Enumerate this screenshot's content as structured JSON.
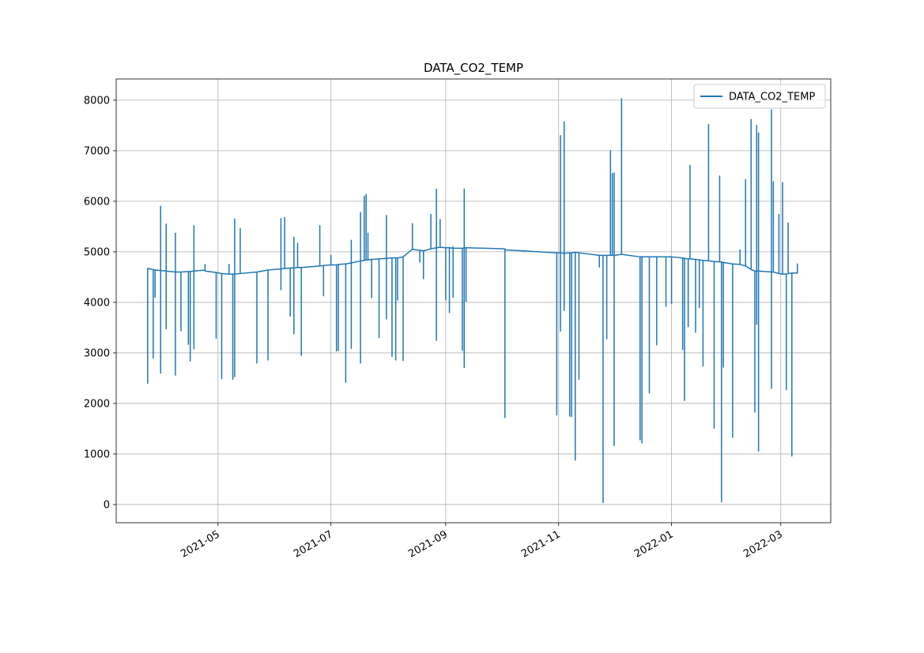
{
  "chart_data": {
    "type": "line",
    "title": "DATA_CO2_TEMP",
    "x": [
      "2021-03-24",
      "2021-03-24",
      "2021-03-24",
      "2021-03-27",
      "2021-03-27",
      "2021-03-27",
      "2021-03-28",
      "2021-03-28",
      "2021-03-28",
      "2021-03-31",
      "2021-03-31",
      "2021-03-31",
      "2021-03-31",
      "2021-04-03",
      "2021-04-03",
      "2021-04-03",
      "2021-04-03",
      "2021-04-08",
      "2021-04-08",
      "2021-04-08",
      "2021-04-08",
      "2021-04-11",
      "2021-04-11",
      "2021-04-11",
      "2021-04-15",
      "2021-04-15",
      "2021-04-15",
      "2021-04-16",
      "2021-04-16",
      "2021-04-16",
      "2021-04-18",
      "2021-04-18",
      "2021-04-18",
      "2021-04-18",
      "2021-04-24",
      "2021-04-24",
      "2021-04-24",
      "2021-04-30",
      "2021-04-30",
      "2021-04-30",
      "2021-05-03",
      "2021-05-03",
      "2021-05-03",
      "2021-05-07",
      "2021-05-07",
      "2021-05-07",
      "2021-05-09",
      "2021-05-09",
      "2021-05-09",
      "2021-05-10",
      "2021-05-10",
      "2021-05-10",
      "2021-05-10",
      "2021-05-13",
      "2021-05-13",
      "2021-05-13",
      "2021-05-22",
      "2021-05-22",
      "2021-05-22",
      "2021-05-28",
      "2021-05-28",
      "2021-05-28",
      "2021-06-04",
      "2021-06-04",
      "2021-06-04",
      "2021-06-04",
      "2021-06-06",
      "2021-06-06",
      "2021-06-06",
      "2021-06-09",
      "2021-06-09",
      "2021-06-09",
      "2021-06-11",
      "2021-06-11",
      "2021-06-11",
      "2021-06-11",
      "2021-06-13",
      "2021-06-13",
      "2021-06-13",
      "2021-06-15",
      "2021-06-15",
      "2021-06-15",
      "2021-06-25",
      "2021-06-25",
      "2021-06-25",
      "2021-06-27",
      "2021-06-27",
      "2021-06-27",
      "2021-07-01",
      "2021-07-01",
      "2021-07-01",
      "2021-07-04",
      "2021-07-04",
      "2021-07-04",
      "2021-07-05",
      "2021-07-05",
      "2021-07-05",
      "2021-07-09",
      "2021-07-09",
      "2021-07-09",
      "2021-07-12",
      "2021-07-12",
      "2021-07-12",
      "2021-07-12",
      "2021-07-17",
      "2021-07-17",
      "2021-07-17",
      "2021-07-17",
      "2021-07-19",
      "2021-07-19",
      "2021-07-19",
      "2021-07-20",
      "2021-07-20",
      "2021-07-20",
      "2021-07-21",
      "2021-07-21",
      "2021-07-21",
      "2021-07-23",
      "2021-07-23",
      "2021-07-23",
      "2021-07-27",
      "2021-07-27",
      "2021-07-27",
      "2021-07-31",
      "2021-07-31",
      "2021-07-31",
      "2021-07-31",
      "2021-08-03",
      "2021-08-03",
      "2021-08-03",
      "2021-08-05",
      "2021-08-05",
      "2021-08-05",
      "2021-08-06",
      "2021-08-06",
      "2021-08-06",
      "2021-08-09",
      "2021-08-09",
      "2021-08-09",
      "2021-08-14",
      "2021-08-14",
      "2021-08-14",
      "2021-08-18",
      "2021-08-18",
      "2021-08-18",
      "2021-08-20",
      "2021-08-20",
      "2021-08-20",
      "2021-08-24",
      "2021-08-24",
      "2021-08-24",
      "2021-08-27",
      "2021-08-27",
      "2021-08-27",
      "2021-08-27",
      "2021-08-29",
      "2021-08-29",
      "2021-08-29",
      "2021-09-01",
      "2021-09-01",
      "2021-09-01",
      "2021-09-03",
      "2021-09-03",
      "2021-09-03",
      "2021-09-05",
      "2021-09-05",
      "2021-09-05",
      "2021-09-05",
      "2021-09-10",
      "2021-09-10",
      "2021-09-10",
      "2021-09-11",
      "2021-09-11",
      "2021-09-11",
      "2021-09-11",
      "2021-09-12",
      "2021-09-12",
      "2021-09-12",
      "2021-10-03",
      "2021-10-03",
      "2021-10-03",
      "2021-10-31",
      "2021-10-31",
      "2021-10-31",
      "2021-10-31",
      "2021-11-02",
      "2021-11-02",
      "2021-11-02",
      "2021-11-02",
      "2021-11-04",
      "2021-11-04",
      "2021-11-04",
      "2021-11-04",
      "2021-11-07",
      "2021-11-07",
      "2021-11-07",
      "2021-11-08",
      "2021-11-08",
      "2021-11-08",
      "2021-11-10",
      "2021-11-10",
      "2021-11-10",
      "2021-11-12",
      "2021-11-12",
      "2021-11-12",
      "2021-11-23",
      "2021-11-23",
      "2021-11-23",
      "2021-11-25",
      "2021-11-25",
      "2021-11-25",
      "2021-11-27",
      "2021-11-27",
      "2021-11-27",
      "2021-11-29",
      "2021-11-29",
      "2021-11-29",
      "2021-11-30",
      "2021-11-30",
      "2021-11-30",
      "2021-12-01",
      "2021-12-01",
      "2021-12-01",
      "2021-12-01",
      "2021-12-05",
      "2021-12-05",
      "2021-12-05",
      "2021-12-15",
      "2021-12-15",
      "2021-12-15",
      "2021-12-16",
      "2021-12-16",
      "2021-12-16",
      "2021-12-20",
      "2021-12-20",
      "2021-12-20",
      "2021-12-24",
      "2021-12-24",
      "2021-12-24",
      "2021-12-29",
      "2021-12-29",
      "2021-12-29",
      "2022-01-01",
      "2022-01-01",
      "2022-01-01",
      "2022-01-07",
      "2022-01-07",
      "2022-01-07",
      "2022-01-08",
      "2022-01-08",
      "2022-01-08",
      "2022-01-10",
      "2022-01-10",
      "2022-01-10",
      "2022-01-11",
      "2022-01-11",
      "2022-01-11",
      "2022-01-14",
      "2022-01-14",
      "2022-01-14",
      "2022-01-16",
      "2022-01-16",
      "2022-01-16",
      "2022-01-18",
      "2022-01-18",
      "2022-01-18",
      "2022-01-21",
      "2022-01-21",
      "2022-01-21",
      "2022-01-24",
      "2022-01-24",
      "2022-01-24",
      "2022-01-27",
      "2022-01-27",
      "2022-01-27",
      "2022-01-28",
      "2022-01-28",
      "2022-01-28",
      "2022-01-29",
      "2022-01-29",
      "2022-01-29",
      "2022-02-03",
      "2022-02-03",
      "2022-02-03",
      "2022-02-03",
      "2022-02-07",
      "2022-02-07",
      "2022-02-07",
      "2022-02-10",
      "2022-02-10",
      "2022-02-10",
      "2022-02-13",
      "2022-02-13",
      "2022-02-13",
      "2022-02-15",
      "2022-02-15",
      "2022-02-15",
      "2022-02-16",
      "2022-02-16",
      "2022-02-16",
      "2022-02-16",
      "2022-02-17",
      "2022-02-17",
      "2022-02-17",
      "2022-02-17",
      "2022-02-24",
      "2022-02-24",
      "2022-02-24",
      "2022-02-24",
      "2022-02-25",
      "2022-02-25",
      "2022-02-25",
      "2022-02-28",
      "2022-02-28",
      "2022-02-28",
      "2022-03-02",
      "2022-03-02",
      "2022-03-02",
      "2022-03-04",
      "2022-03-04",
      "2022-03-04",
      "2022-03-05",
      "2022-03-05",
      "2022-03-05",
      "2022-03-07",
      "2022-03-07",
      "2022-03-07",
      "2022-03-10",
      "2022-03-10",
      "2022-03-10"
    ],
    "series": [
      {
        "name": "DATA_CO2_TEMP",
        "color": "#1f77b4",
        "values": [
          4670,
          2400,
          4670,
          4650,
          2900,
          4650,
          4640,
          4100,
          4640,
          4630,
          5900,
          2600,
          4630,
          4620,
          5550,
          3480,
          4620,
          4600,
          5370,
          2560,
          4600,
          4600,
          3440,
          4600,
          4610,
          3170,
          4610,
          4610,
          2840,
          4610,
          4620,
          5520,
          3080,
          4620,
          4640,
          4750,
          4620,
          4590,
          3290,
          4590,
          4570,
          2490,
          4570,
          4560,
          4750,
          4560,
          4560,
          2480,
          4560,
          4560,
          5650,
          2530,
          4560,
          4570,
          5460,
          4570,
          4600,
          2800,
          4600,
          4640,
          2860,
          4640,
          4660,
          5660,
          4250,
          4660,
          4670,
          5680,
          4670,
          4680,
          3730,
          4680,
          4680,
          5290,
          3380,
          4680,
          4690,
          5170,
          4690,
          4690,
          2950,
          4690,
          4720,
          5520,
          4720,
          4730,
          4130,
          4730,
          4740,
          4930,
          4740,
          4740,
          3040,
          4740,
          4750,
          3050,
          4750,
          4760,
          2420,
          4760,
          4780,
          5230,
          3090,
          4780,
          4820,
          5780,
          2800,
          4820,
          4830,
          6100,
          4830,
          4840,
          6140,
          4840,
          4840,
          5370,
          4840,
          4850,
          4090,
          4850,
          4860,
          3300,
          4860,
          4870,
          5720,
          3670,
          4870,
          4880,
          2930,
          4880,
          4880,
          2860,
          4880,
          4880,
          4050,
          4880,
          4900,
          2850,
          4900,
          5050,
          5560,
          5050,
          5030,
          4800,
          5030,
          5020,
          4470,
          5020,
          5060,
          5740,
          5060,
          5080,
          6240,
          3250,
          5080,
          5090,
          5640,
          5090,
          5080,
          4050,
          5080,
          5080,
          3800,
          5080,
          5070,
          5100,
          4100,
          5070,
          5070,
          3050,
          5070,
          5080,
          6240,
          2710,
          5080,
          5080,
          4020,
          5080,
          5060,
          1720,
          5040,
          4980,
          2930,
          1770,
          4980,
          4980,
          7300,
          3430,
          4980,
          4970,
          7570,
          3840,
          4970,
          4980,
          1750,
          4980,
          4980,
          1740,
          4980,
          4990,
          880,
          4990,
          4980,
          2480,
          4980,
          4930,
          4700,
          4930,
          4930,
          40,
          4930,
          4930,
          3280,
          4930,
          4930,
          7000,
          4930,
          4930,
          6550,
          4930,
          4930,
          6560,
          1170,
          4930,
          4950,
          8030,
          4950,
          4900,
          1280,
          4900,
          4900,
          1220,
          4900,
          4900,
          2210,
          4900,
          4900,
          3160,
          4900,
          4900,
          3920,
          4900,
          4900,
          3980,
          4900,
          4880,
          3070,
          4880,
          4870,
          2060,
          4870,
          4860,
          3520,
          4860,
          4860,
          6710,
          4860,
          4850,
          3410,
          4850,
          4840,
          3900,
          4840,
          4830,
          2740,
          4830,
          4820,
          7520,
          4820,
          4810,
          1510,
          4810,
          4800,
          6500,
          4800,
          4800,
          50,
          4800,
          4790,
          2720,
          4790,
          4760,
          2630,
          1330,
          4760,
          4750,
          5040,
          4750,
          4720,
          6430,
          4720,
          4650,
          7620,
          4650,
          4620,
          1830,
          4620,
          4620,
          7500,
          3570,
          4620,
          4620,
          7350,
          1060,
          4620,
          4600,
          7810,
          2300,
          4600,
          4600,
          6390,
          4600,
          4570,
          5740,
          4570,
          4560,
          6370,
          4560,
          4560,
          2270,
          4560,
          4570,
          5570,
          4570,
          4580,
          960,
          4580,
          4580,
          4760,
          4580
        ]
      }
    ],
    "xlim": [
      "2021-03-07",
      "2022-03-28"
    ],
    "xticks": [
      {
        "value": "2021-05-01",
        "label": "2021-05"
      },
      {
        "value": "2021-07-01",
        "label": "2021-07"
      },
      {
        "value": "2021-09-01",
        "label": "2021-09"
      },
      {
        "value": "2021-11-01",
        "label": "2021-11"
      },
      {
        "value": "2022-01-01",
        "label": "2022-01"
      },
      {
        "value": "2022-03-01",
        "label": "2022-03"
      }
    ],
    "ylim": [
      -360,
      8420
    ],
    "yticks": [
      0,
      1000,
      2000,
      3000,
      4000,
      5000,
      6000,
      7000,
      8000
    ],
    "grid": true,
    "legend": "upper right"
  }
}
